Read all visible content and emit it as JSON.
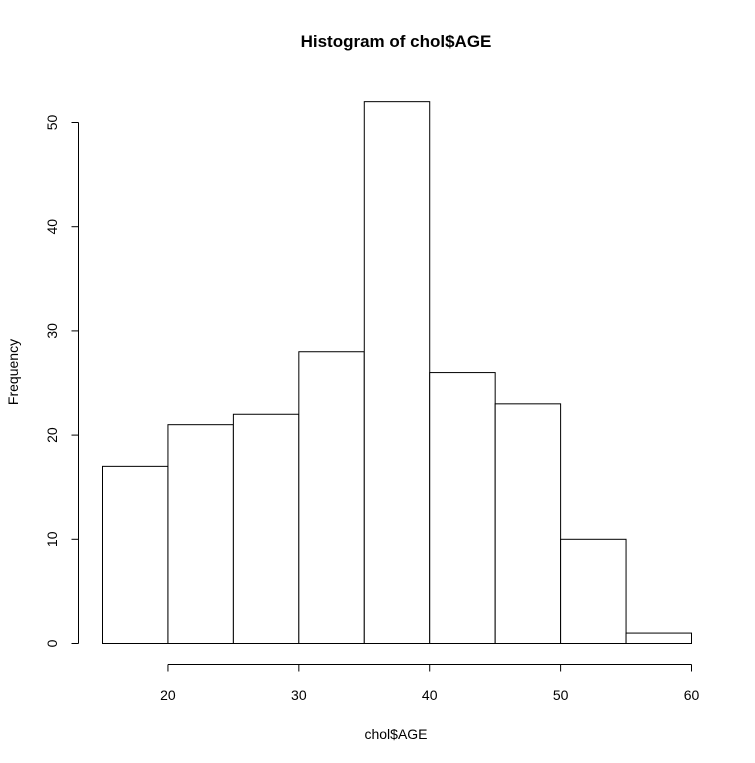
{
  "chart_data": {
    "type": "bar",
    "title": "Histogram of chol$AGE",
    "xlabel": "chol$AGE",
    "ylabel": "Frequency",
    "bins": [
      {
        "start": 15,
        "end": 20,
        "count": 17
      },
      {
        "start": 20,
        "end": 25,
        "count": 21
      },
      {
        "start": 25,
        "end": 30,
        "count": 22
      },
      {
        "start": 30,
        "end": 35,
        "count": 28
      },
      {
        "start": 35,
        "end": 40,
        "count": 52
      },
      {
        "start": 40,
        "end": 45,
        "count": 26
      },
      {
        "start": 45,
        "end": 50,
        "count": 23
      },
      {
        "start": 50,
        "end": 55,
        "count": 10
      },
      {
        "start": 55,
        "end": 60,
        "count": 1
      }
    ],
    "x_ticks": [
      20,
      30,
      40,
      50,
      60
    ],
    "y_ticks": [
      0,
      10,
      20,
      30,
      40,
      50
    ],
    "xlim": [
      15,
      60
    ],
    "ylim": [
      0,
      52
    ],
    "grid": false,
    "legend": "none"
  }
}
